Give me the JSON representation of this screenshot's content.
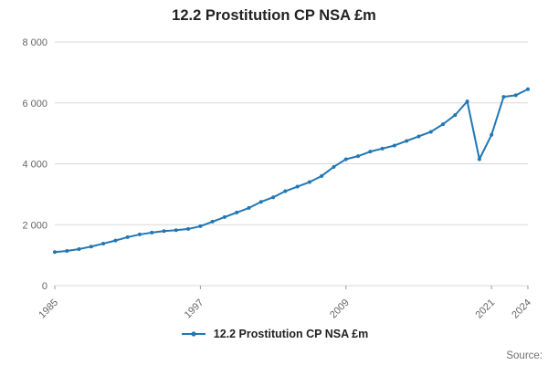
{
  "title": "12.2 Prostitution CP NSA £m",
  "legend": {
    "label": "12.2 Prostitution CP NSA £m"
  },
  "source_label": "Source:",
  "colors": {
    "line": "#2077b4",
    "grid": "#d9d9d9",
    "tick": "#999999",
    "axis_text": "#666666",
    "title_text": "#222222"
  },
  "chart_data": {
    "type": "line",
    "title": "12.2 Prostitution CP NSA £m",
    "x": [
      1985,
      1986,
      1987,
      1988,
      1989,
      1990,
      1991,
      1992,
      1993,
      1994,
      1995,
      1996,
      1997,
      1998,
      1999,
      2000,
      2001,
      2002,
      2003,
      2004,
      2005,
      2006,
      2007,
      2008,
      2009,
      2010,
      2011,
      2012,
      2013,
      2014,
      2015,
      2016,
      2017,
      2018,
      2019,
      2020,
      2021,
      2022,
      2023,
      2024
    ],
    "series": [
      {
        "name": "12.2 Prostitution CP NSA £m",
        "values": [
          1100,
          1140,
          1200,
          1280,
          1380,
          1480,
          1590,
          1680,
          1740,
          1790,
          1820,
          1860,
          1950,
          2100,
          2250,
          2400,
          2550,
          2750,
          2900,
          3100,
          3250,
          3400,
          3600,
          3900,
          4150,
          4250,
          4400,
          4500,
          4600,
          4750,
          4900,
          5050,
          5300,
          5600,
          6050,
          4150,
          4950,
          6200,
          6250,
          6450
        ]
      }
    ],
    "ylim": [
      0,
      8000
    ],
    "yticks": [
      0,
      2000,
      4000,
      6000,
      8000
    ],
    "ytick_labels": [
      "0",
      "2 000",
      "4 000",
      "6 000",
      "8 000"
    ],
    "xticks_labeled": [
      1985,
      1997,
      2009,
      2021,
      2024
    ],
    "grid": "horizontal",
    "legend_position": "bottom",
    "marker": "circle"
  }
}
